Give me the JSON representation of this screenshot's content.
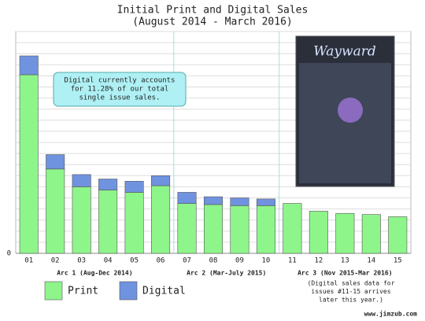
{
  "chart_data": {
    "type": "bar",
    "title": "Initial Print and Digital Sales",
    "subtitle": "(August 2014 - March 2016)",
    "categories": [
      "01",
      "02",
      "03",
      "04",
      "05",
      "06",
      "07",
      "08",
      "09",
      "10",
      "11",
      "12",
      "13",
      "14",
      "15"
    ],
    "series": [
      {
        "name": "Print",
        "color": "#8ef58a",
        "values": [
          16.1,
          7.6,
          6.0,
          5.7,
          5.5,
          6.1,
          4.5,
          4.4,
          4.3,
          4.3,
          4.5,
          3.8,
          3.6,
          3.5,
          3.3
        ]
      },
      {
        "name": "Digital",
        "color": "#7093df",
        "values": [
          1.7,
          1.3,
          1.1,
          1.0,
          1.0,
          0.9,
          1.0,
          0.7,
          0.7,
          0.6,
          null,
          null,
          null,
          null,
          null
        ]
      }
    ],
    "stacked": true,
    "ylim": [
      0,
      20
    ],
    "yticks": [
      0
    ],
    "ygrid": [
      1,
      2,
      3,
      4,
      5,
      6,
      7,
      8,
      9,
      10,
      11,
      12,
      13,
      14,
      15,
      16,
      17,
      18,
      19,
      20
    ],
    "arcs": [
      {
        "label": "Arc 1 (Aug-Dec 2014)",
        "from": 0,
        "to": 5
      },
      {
        "label": "Arc 2 (Mar-July 2015)",
        "from": 6,
        "to": 9
      },
      {
        "label": "Arc 3 (Nov 2015-Mar 2016)",
        "from": 10,
        "to": 14
      }
    ],
    "annotation": [
      "Digital currently accounts",
      "for 11.28% of our total",
      "single issue sales."
    ],
    "note": [
      "(Digital sales data for",
      "issues #11-15 arrives",
      "later this year.)"
    ],
    "cover_title": "Wayward",
    "footer": "www.jimzub.com"
  }
}
